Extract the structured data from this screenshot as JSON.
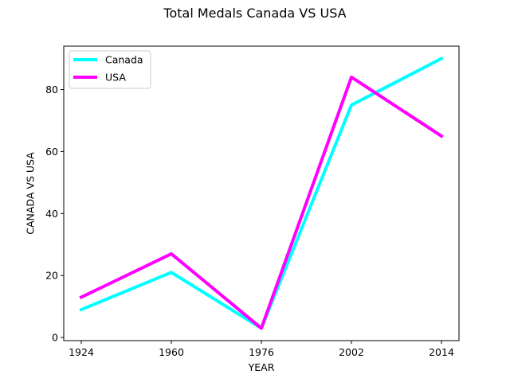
{
  "chart_data": {
    "type": "line",
    "title": "Total Medals Canada VS USA",
    "xlabel": "YEAR",
    "ylabel": "CANADA VS USA",
    "categories": [
      "1924",
      "1960",
      "1976",
      "2002",
      "2014"
    ],
    "ylim": [
      -1,
      94
    ],
    "yticks": [
      0,
      20,
      40,
      60,
      80
    ],
    "grid": false,
    "legend": "top-left",
    "series": [
      {
        "name": "Canada",
        "color": "#00ffff",
        "values": [
          9,
          21,
          3,
          75,
          90
        ]
      },
      {
        "name": "USA",
        "color": "#ff00ff",
        "values": [
          13,
          27,
          3,
          84,
          65
        ]
      }
    ]
  }
}
